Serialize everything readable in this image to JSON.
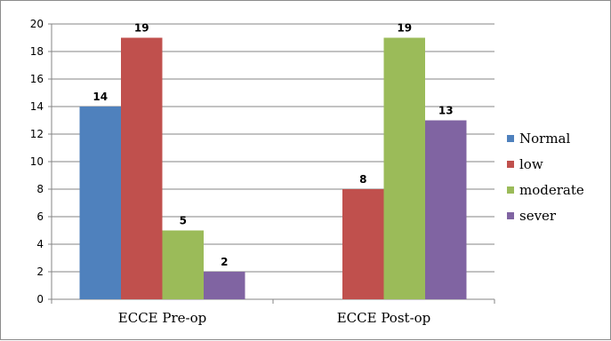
{
  "chart_data": {
    "type": "bar",
    "categories": [
      "ECCE Pre-op",
      "ECCE Post-op"
    ],
    "series": [
      {
        "name": "Normal",
        "color": "#4f81bd",
        "values": [
          14,
          0
        ]
      },
      {
        "name": "low",
        "color": "#c0504d",
        "values": [
          19,
          8
        ]
      },
      {
        "name": "moderate",
        "color": "#9bbb59",
        "values": [
          5,
          19
        ]
      },
      {
        "name": "sever",
        "color": "#8064a2",
        "values": [
          2,
          13
        ]
      }
    ],
    "data_labels": [
      [
        "14",
        null
      ],
      [
        "19",
        "8"
      ],
      [
        "5",
        "19"
      ],
      [
        "2",
        "13"
      ]
    ],
    "ylim": [
      0,
      20
    ],
    "yticks": [
      0,
      2,
      4,
      6,
      8,
      10,
      12,
      14,
      16,
      18,
      20
    ],
    "grid": true,
    "legend": "right",
    "title": "",
    "xlabel": "",
    "ylabel": ""
  }
}
